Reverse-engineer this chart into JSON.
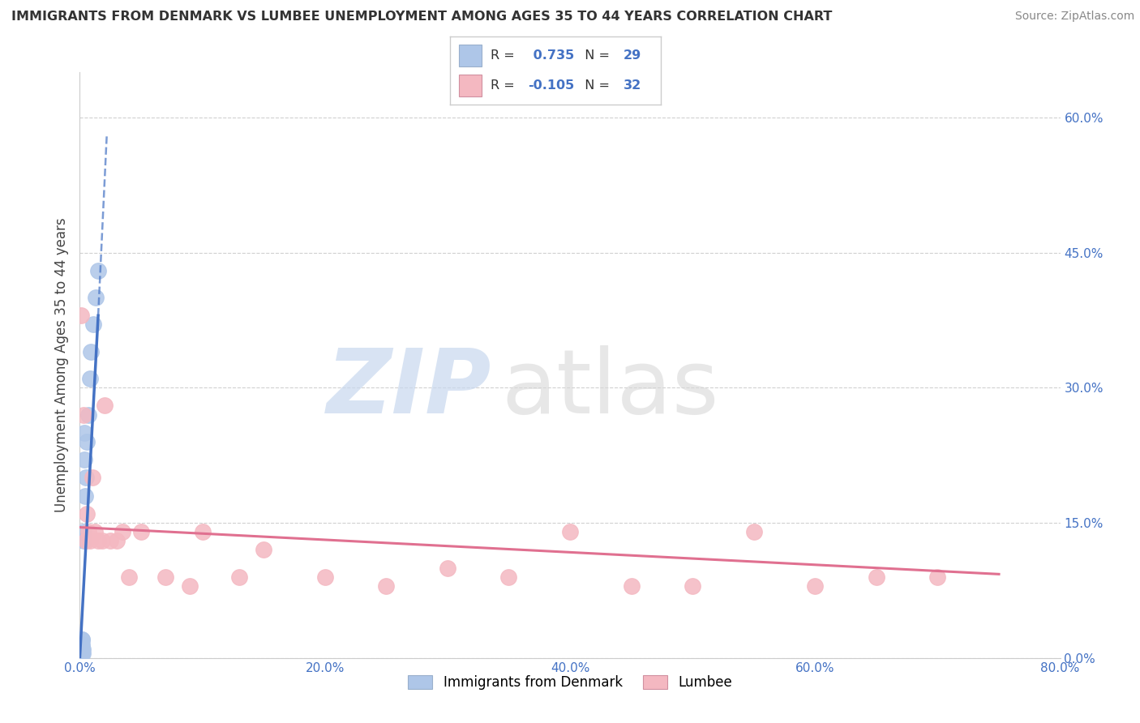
{
  "title": "IMMIGRANTS FROM DENMARK VS LUMBEE UNEMPLOYMENT AMONG AGES 35 TO 44 YEARS CORRELATION CHART",
  "source": "Source: ZipAtlas.com",
  "ylabel": "Unemployment Among Ages 35 to 44 years",
  "xlim": [
    0.0,
    0.8
  ],
  "ylim": [
    0.0,
    0.65
  ],
  "xticks": [
    0.0,
    0.2,
    0.4,
    0.6,
    0.8
  ],
  "yticks": [
    0.0,
    0.15,
    0.3,
    0.45,
    0.6
  ],
  "xtick_labels": [
    "0.0%",
    "20.0%",
    "40.0%",
    "60.0%",
    "80.0%"
  ],
  "ytick_labels": [
    "0.0%",
    "15.0%",
    "30.0%",
    "45.0%",
    "60.0%"
  ],
  "series1_name": "Immigrants from Denmark",
  "series1_color": "#aec6e8",
  "series1_line_color": "#4472c4",
  "series1_R": 0.735,
  "series1_N": 29,
  "series2_name": "Lumbee",
  "series2_color": "#f4b8c1",
  "series2_line_color": "#e07090",
  "series2_R": -0.105,
  "series2_N": 32,
  "tick_color": "#4472c4",
  "grid_color": "#d0d0d0",
  "background_color": "#ffffff",
  "series1_x": [
    0.0005,
    0.0006,
    0.0007,
    0.0008,
    0.0009,
    0.001,
    0.0012,
    0.0013,
    0.0014,
    0.0015,
    0.0016,
    0.0017,
    0.0018,
    0.002,
    0.0022,
    0.0025,
    0.003,
    0.0032,
    0.0035,
    0.004,
    0.0045,
    0.005,
    0.006,
    0.007,
    0.008,
    0.009,
    0.011,
    0.013,
    0.015
  ],
  "series1_y": [
    0.005,
    0.01,
    0.005,
    0.008,
    0.01,
    0.005,
    0.01,
    0.015,
    0.008,
    0.02,
    0.005,
    0.01,
    0.015,
    0.02,
    0.005,
    0.01,
    0.13,
    0.14,
    0.22,
    0.25,
    0.18,
    0.2,
    0.24,
    0.27,
    0.31,
    0.34,
    0.37,
    0.4,
    0.43
  ],
  "series2_x": [
    0.001,
    0.003,
    0.005,
    0.006,
    0.007,
    0.008,
    0.01,
    0.012,
    0.015,
    0.018,
    0.02,
    0.025,
    0.03,
    0.035,
    0.04,
    0.05,
    0.07,
    0.09,
    0.1,
    0.13,
    0.15,
    0.2,
    0.25,
    0.3,
    0.35,
    0.4,
    0.45,
    0.5,
    0.55,
    0.6,
    0.65,
    0.7
  ],
  "series2_y": [
    0.38,
    0.27,
    0.13,
    0.16,
    0.14,
    0.13,
    0.2,
    0.14,
    0.13,
    0.13,
    0.28,
    0.13,
    0.13,
    0.14,
    0.09,
    0.14,
    0.09,
    0.08,
    0.14,
    0.09,
    0.12,
    0.09,
    0.08,
    0.1,
    0.09,
    0.14,
    0.08,
    0.08,
    0.14,
    0.08,
    0.09,
    0.09
  ],
  "trend1_x0": 0.0,
  "trend1_y0": 0.0,
  "trend1_x1": 0.015,
  "trend1_y1": 0.38,
  "trend1_dash_x0": 0.015,
  "trend1_dash_y0": 0.38,
  "trend1_dash_x1": 0.022,
  "trend1_dash_y1": 0.58,
  "trend2_x0": 0.0,
  "trend2_y0": 0.145,
  "trend2_x1": 0.75,
  "trend2_y1": 0.093
}
